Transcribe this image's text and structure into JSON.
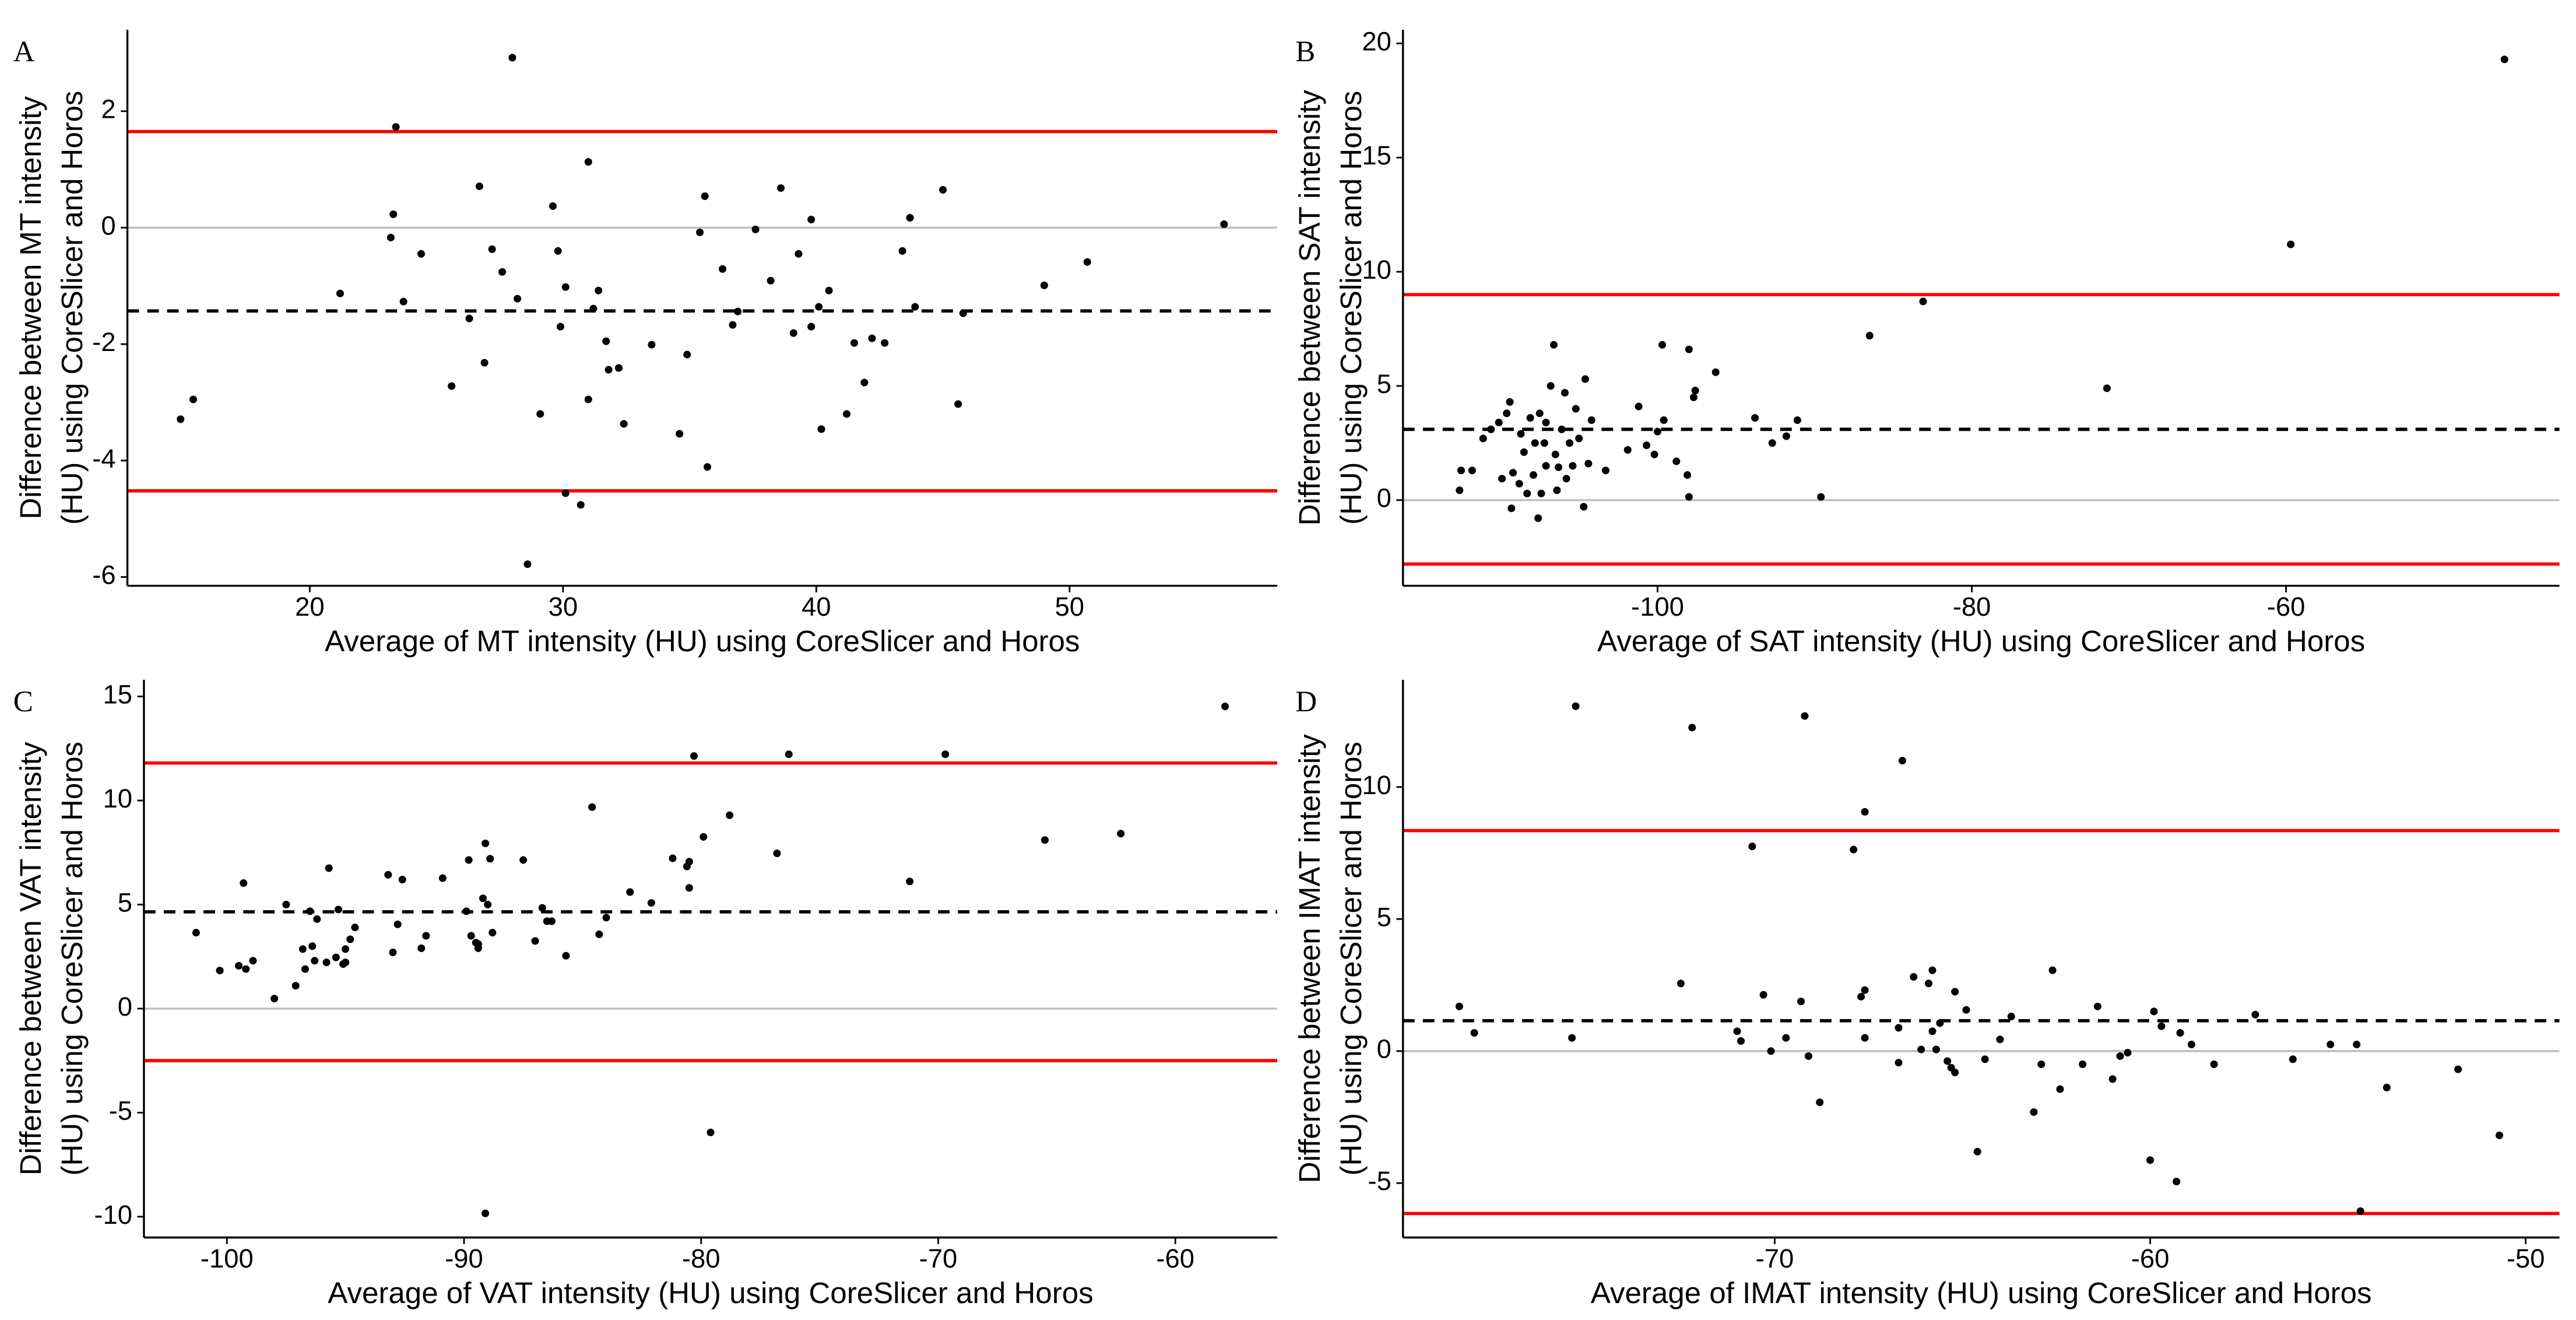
{
  "chart_data": [
    {
      "type": "scatter",
      "panel_label": "A",
      "x_label": "Average of MT intensity (HU) using CoreSlicer and Horos",
      "y_label": [
        "Difference between MT intensity",
        "(HU) using CoreSlicer and Horos"
      ],
      "xlim": [
        12.8,
        58.2
      ],
      "ylim": [
        -6.15,
        3.4
      ],
      "xticks": [
        20,
        30,
        40,
        50
      ],
      "yticks": [
        -6,
        -4,
        -2,
        0,
        2
      ],
      "color": "#000000",
      "reference_lines": [
        {
          "value": 0,
          "color": "#bebebe",
          "style": "solid"
        },
        {
          "value": 1.65,
          "color": "#ff0000",
          "style": "solid"
        },
        {
          "value": -4.52,
          "color": "#ff0000",
          "style": "solid"
        },
        {
          "value": -1.43,
          "color": "#000000",
          "style": "dashed"
        }
      ],
      "x": [
        14.9,
        15.4,
        21.2,
        23.2,
        23.3,
        23.4,
        23.7,
        24.4,
        25.6,
        26.3,
        26.7,
        26.9,
        27.2,
        27.6,
        28.0,
        28.2,
        28.6,
        29.1,
        29.6,
        29.8,
        29.9,
        30.1,
        30.1,
        30.7,
        31.0,
        31.0,
        31.2,
        31.4,
        31.7,
        31.8,
        32.2,
        32.4,
        33.5,
        34.6,
        34.9,
        35.4,
        35.6,
        35.7,
        36.3,
        36.7,
        36.9,
        37.6,
        38.2,
        38.6,
        39.1,
        39.3,
        39.8,
        39.8,
        40.1,
        40.2,
        40.5,
        41.2,
        41.5,
        41.9,
        42.2,
        42.7,
        43.4,
        43.7,
        43.9,
        45.0,
        45.6,
        45.8,
        49.0,
        50.7,
        56.1
      ],
      "y": [
        -3.29,
        -2.95,
        -1.13,
        -0.17,
        0.23,
        1.73,
        -1.27,
        -0.45,
        -2.72,
        -1.56,
        0.71,
        -2.32,
        -0.37,
        -0.76,
        2.92,
        -1.22,
        -5.78,
        -3.2,
        0.37,
        -0.4,
        -1.7,
        -1.02,
        -4.56,
        -4.76,
        1.13,
        -2.95,
        -1.39,
        -1.08,
        -1.95,
        -2.44,
        -2.41,
        -3.37,
        -2.01,
        -3.54,
        -2.18,
        -0.08,
        0.54,
        -4.11,
        -0.71,
        -1.67,
        -1.44,
        -0.03,
        -0.91,
        0.68,
        -1.81,
        -0.45,
        0.14,
        -1.7,
        -1.36,
        -3.46,
        -1.08,
        -3.2,
        -1.98,
        -2.66,
        -1.9,
        -1.98,
        -0.4,
        0.17,
        -1.36,
        0.65,
        -3.03,
        -1.47,
        -0.99,
        -0.59,
        0.06
      ]
    },
    {
      "type": "scatter",
      "panel_label": "B",
      "x_label": "Average of SAT intensity (HU) using CoreSlicer and Horos",
      "y_label": [
        "Difference between SAT intensity",
        "(HU) using CoreSlicer and Horos"
      ],
      "xlim": [
        -116.2,
        -42.6
      ],
      "ylim": [
        -3.75,
        20.6
      ],
      "xticks": [
        -100,
        -80,
        -60
      ],
      "yticks": [
        0,
        5,
        10,
        15,
        20
      ],
      "color": "#000000",
      "reference_lines": [
        {
          "value": 0,
          "color": "#bebebe",
          "style": "solid"
        },
        {
          "value": 9.0,
          "color": "#ff0000",
          "style": "solid"
        },
        {
          "value": -2.8,
          "color": "#ff0000",
          "style": "solid"
        },
        {
          "value": 3.1,
          "color": "#000000",
          "style": "dashed"
        }
      ],
      "x": [
        -112.6,
        -112.5,
        -111.8,
        -111.1,
        -110.6,
        -110.1,
        -109.9,
        -109.6,
        -109.4,
        -109.3,
        -109.2,
        -108.8,
        -108.7,
        -108.5,
        -108.3,
        -108.1,
        -107.9,
        -107.8,
        -107.6,
        -107.5,
        -107.4,
        -107.2,
        -107.1,
        -107.1,
        -106.8,
        -106.6,
        -106.5,
        -106.4,
        -106.3,
        -106.1,
        -105.9,
        -105.8,
        -105.6,
        -105.4,
        -105.2,
        -105.0,
        -104.7,
        -104.6,
        -104.4,
        -104.2,
        -103.3,
        -101.9,
        -101.2,
        -100.7,
        -100.2,
        -100.0,
        -99.6,
        -99.7,
        -98.8,
        -98.1,
        -98.0,
        -97.7,
        -97.6,
        -98.0,
        -96.3,
        -93.8,
        -92.7,
        -91.8,
        -91.1,
        -89.6,
        -86.5,
        -83.1,
        -71.4,
        -59.7,
        -46.1
      ],
      "y": [
        0.43,
        1.3,
        1.3,
        2.7,
        3.1,
        3.4,
        0.94,
        3.8,
        4.3,
        -0.36,
        1.2,
        0.72,
        2.9,
        2.1,
        0.29,
        3.6,
        1.1,
        2.5,
        -0.79,
        3.8,
        0.29,
        2.5,
        1.5,
        3.4,
        5.0,
        6.8,
        2.0,
        0.43,
        1.44,
        3.1,
        4.7,
        0.94,
        2.5,
        1.5,
        4.0,
        2.7,
        -0.29,
        5.3,
        1.6,
        3.5,
        1.3,
        2.2,
        4.1,
        2.4,
        2.0,
        3.0,
        3.5,
        6.8,
        1.7,
        1.1,
        6.6,
        4.5,
        4.8,
        0.14,
        5.6,
        3.6,
        2.5,
        2.8,
        3.5,
        0.14,
        7.2,
        8.7,
        4.9,
        11.2,
        19.3
      ]
    },
    {
      "type": "scatter",
      "panel_label": "C",
      "x_label": "Average of VAT intensity (HU) using CoreSlicer and Horos",
      "y_label": [
        "Difference between VAT intensity",
        "(HU) using CoreSlicer and Horos"
      ],
      "xlim": [
        -103.5,
        -55.7
      ],
      "ylim": [
        -11.0,
        15.8
      ],
      "xticks": [
        -100,
        -90,
        -80,
        -70,
        -60
      ],
      "yticks": [
        -10,
        -5,
        0,
        5,
        10,
        15
      ],
      "color": "#000000",
      "reference_lines": [
        {
          "value": 0,
          "color": "#bebebe",
          "style": "solid"
        },
        {
          "value": 11.8,
          "color": "#ff0000",
          "style": "solid"
        },
        {
          "value": -2.5,
          "color": "#ff0000",
          "style": "solid"
        },
        {
          "value": 4.65,
          "color": "#000000",
          "style": "dashed"
        }
      ],
      "x": [
        -101.3,
        -100.3,
        -99.5,
        -99.3,
        -99.2,
        -98.9,
        -98.0,
        -97.5,
        -97.1,
        -96.8,
        -96.7,
        -96.5,
        -96.4,
        -96.3,
        -96.2,
        -95.8,
        -95.7,
        -95.4,
        -95.3,
        -95.1,
        -95.0,
        -95.0,
        -94.8,
        -94.6,
        -93.2,
        -93.0,
        -92.8,
        -92.6,
        -91.8,
        -91.6,
        -90.9,
        -89.9,
        -89.8,
        -89.7,
        -89.5,
        -89.4,
        -89.4,
        -89.2,
        -89.1,
        -89.1,
        -89.0,
        -88.9,
        -88.8,
        -87.5,
        -87.0,
        -86.7,
        -86.5,
        -86.3,
        -85.7,
        -84.6,
        -84.3,
        -84.0,
        -83.0,
        -82.1,
        -81.2,
        -80.6,
        -80.5,
        -80.5,
        -80.3,
        -79.9,
        -79.6,
        -78.8,
        -76.8,
        -76.3,
        -71.2,
        -69.7,
        -65.5,
        -62.3,
        -57.9
      ],
      "y": [
        3.65,
        1.83,
        2.06,
        6.03,
        1.9,
        2.3,
        0.48,
        5.0,
        1.1,
        2.86,
        1.9,
        4.68,
        3.0,
        2.3,
        4.3,
        2.22,
        6.75,
        2.46,
        4.76,
        2.14,
        2.86,
        2.22,
        3.33,
        3.9,
        6.43,
        2.7,
        4.05,
        6.2,
        2.9,
        3.5,
        6.27,
        4.68,
        7.14,
        3.5,
        3.17,
        3.1,
        2.9,
        5.3,
        7.94,
        -9.84,
        5.0,
        7.2,
        3.65,
        7.14,
        3.25,
        4.84,
        4.2,
        4.2,
        2.54,
        9.68,
        3.57,
        4.37,
        5.6,
        5.08,
        7.22,
        6.83,
        5.8,
        7.06,
        12.14,
        8.25,
        -5.95,
        9.29,
        7.46,
        12.22,
        6.11,
        12.22,
        8.1,
        8.41,
        14.52
      ]
    },
    {
      "type": "scatter",
      "panel_label": "D",
      "x_label": "Average of IMAT intensity (HU) using CoreSlicer and Horos",
      "y_label": [
        "Difference between IMAT intensity",
        "(HU) using CoreSlicer and Horos"
      ],
      "xlim": [
        -79.9,
        -49.1
      ],
      "ylim": [
        -7.06,
        14.06
      ],
      "xticks": [
        -70,
        -60,
        -50
      ],
      "yticks": [
        -5,
        0,
        5,
        10
      ],
      "color": "#000000",
      "reference_lines": [
        {
          "value": 0,
          "color": "#bebebe",
          "style": "solid"
        },
        {
          "value": 8.35,
          "color": "#ff0000",
          "style": "solid"
        },
        {
          "value": -6.15,
          "color": "#ff0000",
          "style": "solid"
        },
        {
          "value": 1.15,
          "color": "#000000",
          "style": "dashed"
        }
      ],
      "x": [
        -78.4,
        -78.0,
        -75.4,
        -75.3,
        -72.5,
        -72.2,
        -71.0,
        -70.9,
        -70.6,
        -70.3,
        -70.1,
        -69.7,
        -69.3,
        -69.2,
        -69.1,
        -68.8,
        -67.9,
        -67.7,
        -67.6,
        -67.6,
        -67.6,
        -66.7,
        -66.7,
        -66.6,
        -66.3,
        -66.1,
        -65.9,
        -65.8,
        -65.8,
        -65.7,
        -65.6,
        -65.4,
        -65.3,
        -65.2,
        -65.2,
        -64.9,
        -64.6,
        -64.4,
        -64.0,
        -63.7,
        -63.1,
        -62.9,
        -62.6,
        -62.4,
        -61.8,
        -61.4,
        -61.0,
        -60.8,
        -60.6,
        -60.0,
        -59.9,
        -59.7,
        -59.3,
        -59.2,
        -58.9,
        -58.3,
        -57.2,
        -56.2,
        -55.2,
        -54.5,
        -54.4,
        -53.7,
        -51.8,
        -50.7
      ],
      "y": [
        1.69,
        0.69,
        0.5,
        13.06,
        2.56,
        12.25,
        0.75,
        0.38,
        7.75,
        2.13,
        0.0,
        0.5,
        1.88,
        12.69,
        -0.19,
        -1.94,
        7.63,
        2.06,
        0.5,
        9.06,
        2.31,
        0.88,
        -0.44,
        11.0,
        2.81,
        0.06,
        2.56,
        3.06,
        0.75,
        0.06,
        1.06,
        -0.38,
        -0.63,
        -0.81,
        2.25,
        1.56,
        -3.81,
        -0.31,
        0.44,
        1.31,
        -2.31,
        -0.5,
        3.06,
        -1.44,
        -0.5,
        1.69,
        -1.06,
        -0.19,
        -0.06,
        -4.13,
        1.5,
        0.94,
        -4.94,
        0.69,
        0.25,
        -0.5,
        1.38,
        -0.31,
        0.25,
        0.25,
        -6.06,
        -1.38,
        -0.69,
        -3.19
      ]
    }
  ]
}
